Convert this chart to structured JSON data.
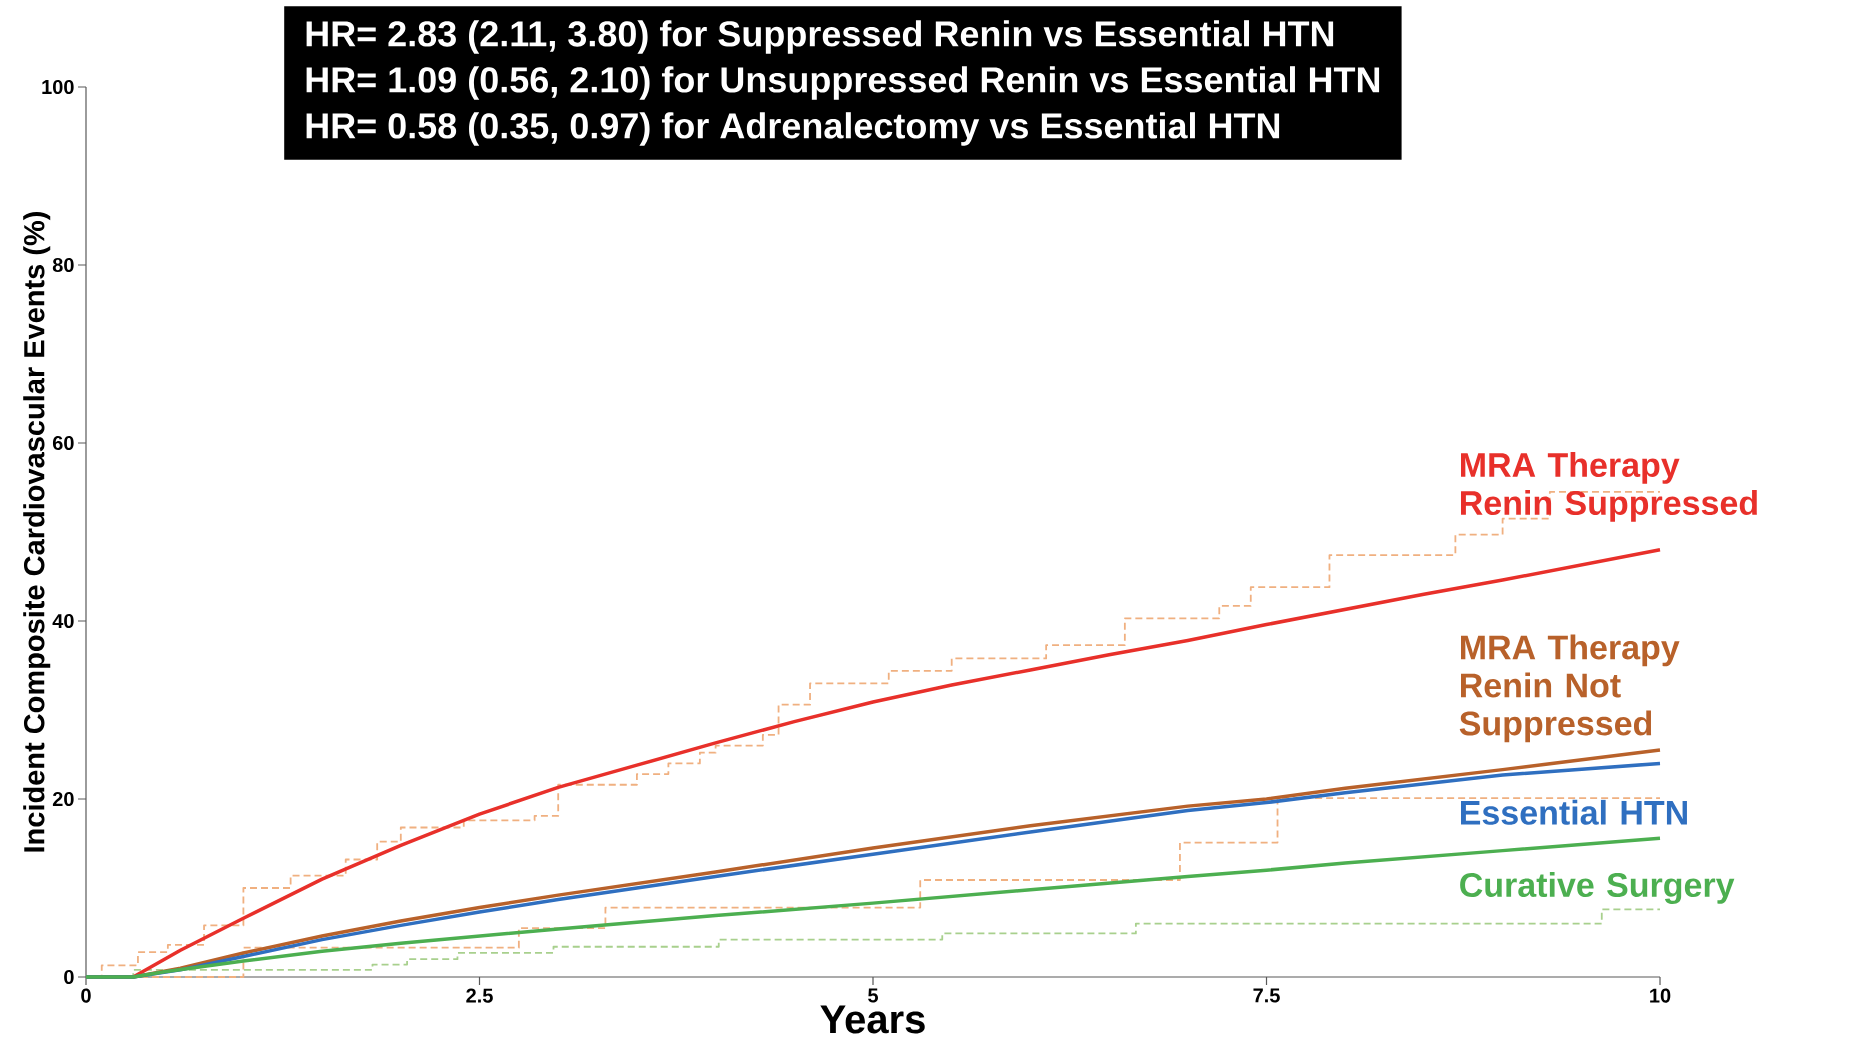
{
  "chart_data": {
    "type": "line",
    "xlabel": "Years",
    "ylabel": "Incident Composite Cardiovascular Events (%)",
    "annotations": [
      "HR= 2.83 (2.11, 3.80) for Suppressed Renin vs Essential HTN",
      "HR= 1.09 (0.56, 2.10) for Unsuppressed Renin vs Essential HTN",
      "HR= 0.58 (0.35, 0.97) for Adrenalectomy vs Essential HTN"
    ],
    "xlim": [
      0,
      10
    ],
    "ylim": [
      0,
      100
    ],
    "xticks": [
      0,
      2.5,
      5,
      7.5,
      10
    ],
    "yticks": [
      0,
      20,
      40,
      60,
      80,
      100
    ],
    "series": [
      {
        "name": "MRA Therapy Renin Suppressed",
        "color": "#e8302a",
        "x": [
          0,
          0.3,
          0.6,
          1,
          1.5,
          2,
          2.5,
          3,
          3.5,
          4,
          4.5,
          5,
          5.5,
          6,
          6.5,
          7,
          7.5,
          8,
          8.5,
          9,
          9.5,
          10
        ],
        "values": [
          0,
          0,
          3,
          6.6,
          11,
          14.8,
          18.3,
          21.3,
          23.8,
          26.3,
          28.7,
          30.9,
          32.8,
          34.5,
          36.2,
          37.8,
          39.6,
          41.3,
          43,
          44.6,
          46.3,
          48
        ]
      },
      {
        "name": "MRA Therapy Renin Not Suppressed",
        "color": "#b8612a",
        "x": [
          0,
          0.3,
          0.6,
          1,
          1.5,
          2,
          2.5,
          3,
          3.5,
          4,
          5,
          6,
          7,
          7.5,
          8,
          9,
          10
        ],
        "values": [
          0,
          0,
          1,
          2.7,
          4.6,
          6.3,
          7.8,
          9.2,
          10.5,
          11.8,
          14.5,
          17,
          19.2,
          20,
          21.2,
          23.3,
          25.5
        ]
      },
      {
        "name": "Essential HTN",
        "color": "#2f6fc0",
        "x": [
          0,
          0.3,
          0.6,
          1,
          1.5,
          2,
          2.5,
          3,
          3.5,
          4,
          5,
          6,
          7,
          7.5,
          8,
          9,
          10
        ],
        "values": [
          0,
          0,
          0.8,
          2.3,
          4.2,
          5.8,
          7.3,
          8.7,
          10,
          11.3,
          13.8,
          16.3,
          18.7,
          19.6,
          20.7,
          22.7,
          24
        ]
      },
      {
        "name": "Curative Surgery",
        "color": "#4caf50",
        "x": [
          0,
          0.3,
          0.5,
          1,
          1.5,
          2,
          2.5,
          3,
          4,
          5,
          6,
          7,
          7.5,
          8,
          9,
          10
        ],
        "values": [
          0,
          0,
          0.6,
          1.8,
          2.9,
          3.8,
          4.6,
          5.4,
          6.9,
          8.3,
          9.8,
          11.3,
          12,
          12.8,
          14.2,
          15.6
        ]
      },
      {
        "color": "#f0b080",
        "type": "step",
        "line_style": "dashed",
        "x": [
          0,
          0.1,
          0.33,
          0.52,
          0.75,
          1.0,
          1.3,
          1.65,
          1.85,
          2.0,
          2.4,
          2.85,
          3.0,
          3.5,
          3.7,
          3.9,
          4.0,
          4.3,
          4.4,
          4.6,
          5.1,
          5.5,
          6.1,
          6.6,
          7.2,
          7.4,
          7.9,
          8.7,
          9.0,
          9.3,
          10
        ],
        "values": [
          0,
          1.3,
          2.8,
          3.6,
          5.8,
          10,
          11.4,
          13.2,
          15.2,
          16.8,
          17.6,
          18.1,
          21.6,
          22.8,
          24,
          25.2,
          26,
          27.2,
          30.6,
          33,
          34.4,
          35.8,
          37.3,
          40.3,
          41.7,
          43.8,
          47.4,
          49.7,
          51.5,
          54.5,
          54.5
        ]
      },
      {
        "color": "#f0b080",
        "type": "step",
        "line_style": "dashed",
        "x": [
          0,
          0.5,
          1.0,
          2.75,
          3.3,
          5.3,
          6.95,
          7.57,
          10
        ],
        "values": [
          0,
          0,
          3.3,
          5.5,
          7.8,
          10.9,
          15.1,
          20.1,
          20.1
        ]
      },
      {
        "color": "#a8d08d",
        "type": "step",
        "line_style": "dashed",
        "x": [
          0,
          0.3,
          1.82,
          2.04,
          2.36,
          2.97,
          4.02,
          5.44,
          6.67,
          9.63,
          10
        ],
        "values": [
          0,
          0.8,
          1.4,
          2.0,
          2.7,
          3.4,
          4.2,
          4.9,
          6.0,
          7.6,
          7.6
        ]
      }
    ]
  }
}
